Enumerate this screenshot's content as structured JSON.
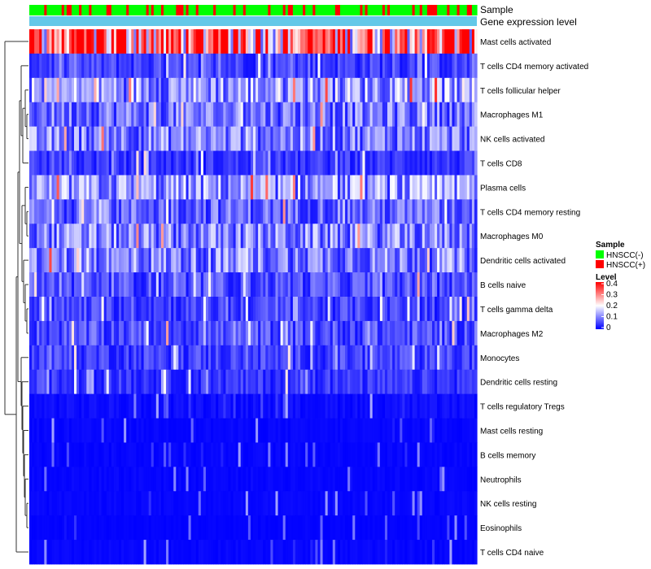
{
  "chart_data": {
    "type": "heatmap",
    "title": "",
    "annotation_tracks": [
      "Sample",
      "Gene expression level"
    ],
    "rows": [
      "Mast cells activated",
      "T cells CD4 memory activated",
      "T cells follicular helper",
      "Macrophages M1",
      "NK cells activated",
      "T cells CD8",
      "Plasma cells",
      "T cells CD4 memory resting",
      "Macrophages M0",
      "Dendritic cells activated",
      "B cells naive",
      "T cells gamma delta",
      "Macrophages M2",
      "Monocytes",
      "Dendritic cells resting",
      "T cells regulatory  Tregs",
      "Mast cells resting",
      "B cells memory",
      "Neutrophils",
      "NK cells resting",
      "Eosinophils",
      "T cells CD4 naive"
    ],
    "row_mean_level": [
      0.32,
      0.05,
      0.12,
      0.09,
      0.1,
      0.04,
      0.11,
      0.08,
      0.1,
      0.1,
      0.06,
      0.05,
      0.06,
      0.05,
      0.04,
      0.02,
      0.01,
      0.01,
      0.01,
      0.01,
      0.005,
      0.01
    ],
    "n_samples": 180,
    "legends": {
      "sample": {
        "title": "Sample",
        "entries": [
          {
            "label": "HNSCC(-)",
            "color": "#00ff00"
          },
          {
            "label": "HNSCC(+)",
            "color": "#ff0000"
          }
        ]
      },
      "level": {
        "title": "Level",
        "ticks": [
          "0.4",
          "0.3",
          "0.2",
          "0.1",
          "0"
        ],
        "range": [
          0,
          0.4
        ],
        "colors": [
          "#0000ff",
          "#ffffff",
          "#ff0000"
        ]
      }
    },
    "gene_expression_color": "#64c8e8",
    "dendrogram": "row clustering tree (left side)"
  }
}
